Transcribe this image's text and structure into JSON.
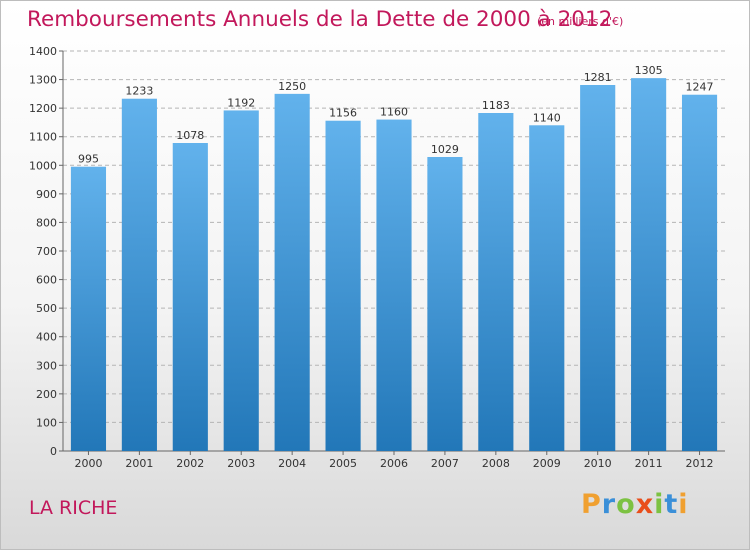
{
  "header": {
    "title": "Remboursements Annuels de la Dette de 2000 à 2012",
    "unit": "(en milliers d'€)"
  },
  "footer": {
    "commune": "LA RICHE",
    "logo": [
      {
        "ch": "P",
        "color": "#f0a030"
      },
      {
        "ch": "r",
        "color": "#3a8fd8"
      },
      {
        "ch": "o",
        "color": "#7cc242"
      },
      {
        "ch": "x",
        "color": "#e94e1b"
      },
      {
        "ch": "i",
        "color": "#7cc242"
      },
      {
        "ch": "t",
        "color": "#3a8fd8"
      },
      {
        "ch": "i",
        "color": "#f0a030"
      }
    ]
  },
  "colors": {
    "bar_top": "#62b2ec",
    "bar_bottom": "#2277b8",
    "grid": "#b5b5b5",
    "title": "#c2185b"
  },
  "chart_data": {
    "type": "bar",
    "title": "Remboursements Annuels de la Dette de 2000 à 2012",
    "subtitle": "(en milliers d'€)",
    "xlabel": "",
    "ylabel": "",
    "categories": [
      "2000",
      "2001",
      "2002",
      "2003",
      "2004",
      "2005",
      "2006",
      "2007",
      "2008",
      "2009",
      "2010",
      "2011",
      "2012"
    ],
    "values": [
      995,
      1233,
      1078,
      1192,
      1250,
      1156,
      1160,
      1029,
      1183,
      1140,
      1281,
      1305,
      1247
    ],
    "ylim": [
      0,
      1400
    ],
    "yticks": [
      0,
      100,
      200,
      300,
      400,
      500,
      600,
      700,
      800,
      900,
      1000,
      1100,
      1200,
      1300,
      1400
    ],
    "grid": true,
    "legend": "none"
  }
}
